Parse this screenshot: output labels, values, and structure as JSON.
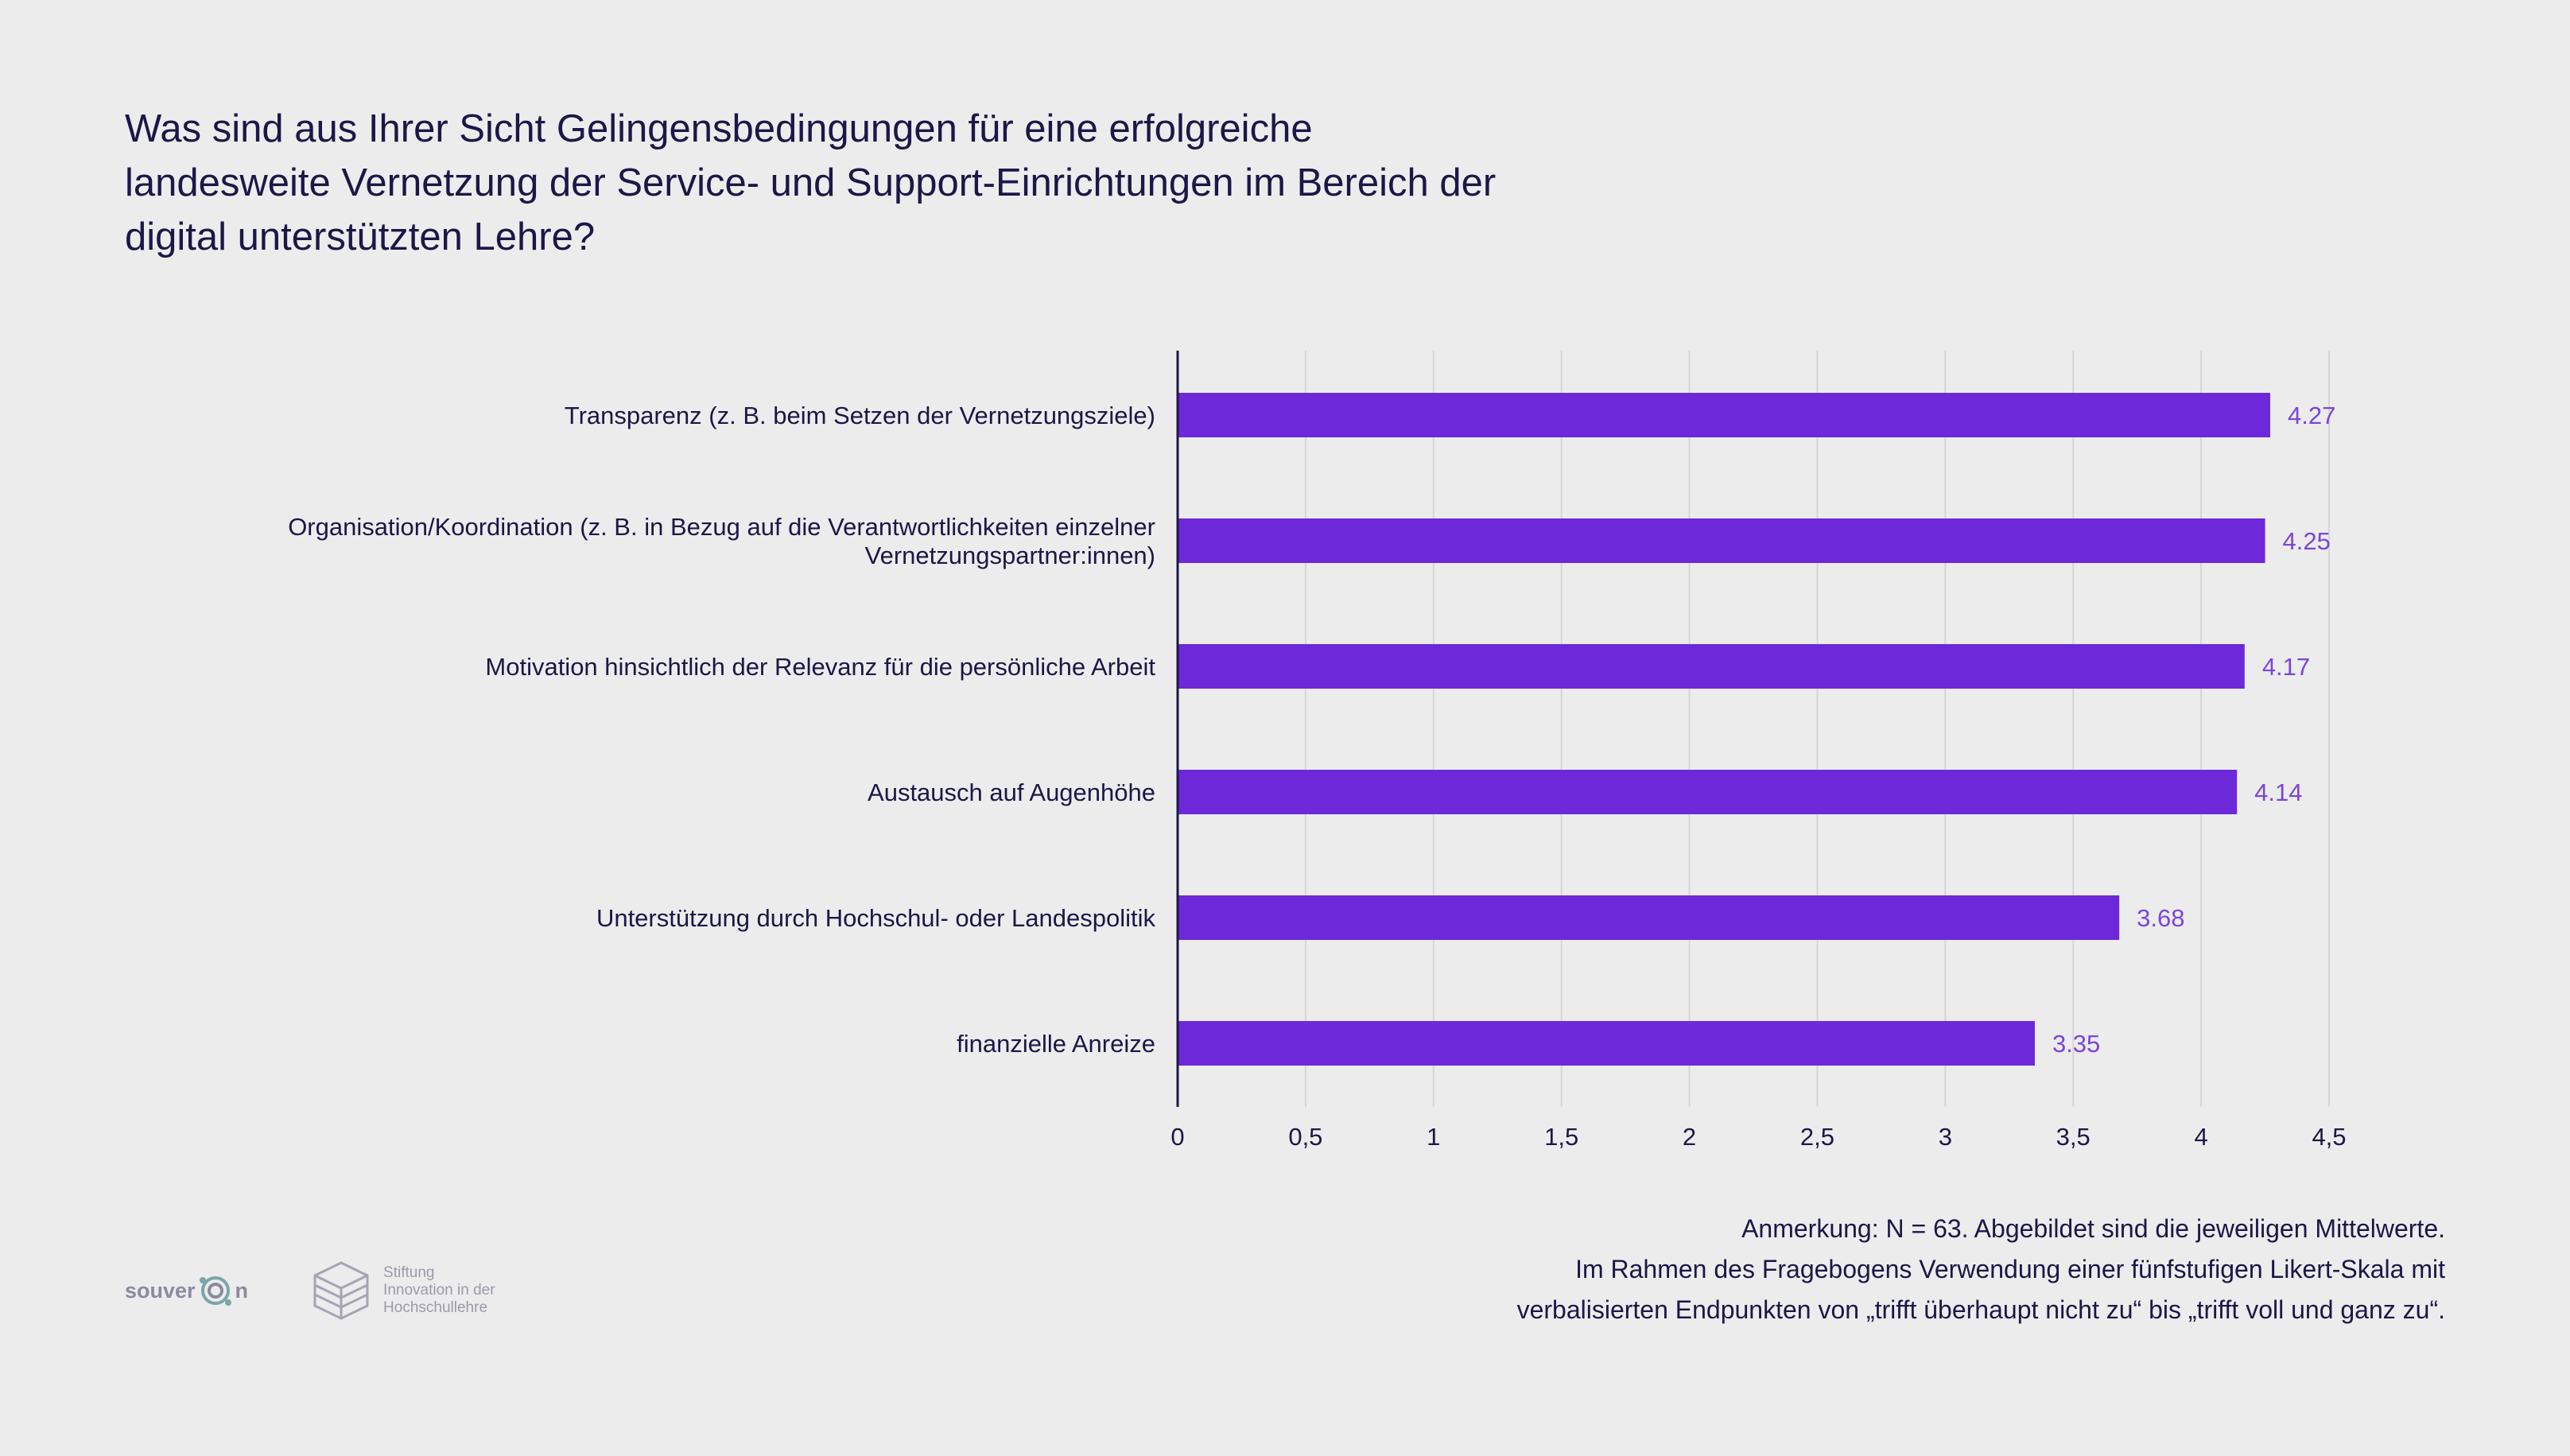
{
  "title_lines": [
    "Was sind aus Ihrer Sicht Gelingensbedingungen für eine erfolgreiche",
    "landesweite Vernetzung der Service- und Support-Einrichtungen im Bereich der",
    "digital unterstützten Lehre?"
  ],
  "note_lines": [
    "Anmerkung: N = 63. Abgebildet sind die jeweiligen Mittelwerte.",
    "Im Rahmen des Fragebogens Verwendung einer fünfstufigen Likert-Skala mit",
    "verbalisierten Endpunkten von „trifft überhaupt nicht zu“ bis „trifft voll und ganz zu“."
  ],
  "logos": {
    "souveran": {
      "text_a": "souver",
      "text_b": "n"
    },
    "stiftung": {
      "lines": [
        "Stiftung",
        "Innovation in der",
        "Hochschullehre"
      ]
    }
  },
  "colors": {
    "bar": "#6d28d9",
    "value_label": "#7a46d9",
    "text": "#1b1747",
    "grid": "#d6d6d6",
    "background": "#ececec"
  },
  "chart_data": {
    "type": "bar",
    "orientation": "horizontal",
    "categories": [
      [
        "Transparenz (z. B. beim Setzen der Vernetzungsziele)"
      ],
      [
        "Organisation/Koordination (z. B. in Bezug auf die Verantwortlichkeiten einzelner",
        "Vernetzungspartner:innen)"
      ],
      [
        "Motivation hinsichtlich der Relevanz für die persönliche Arbeit"
      ],
      [
        "Austausch auf Augenhöhe"
      ],
      [
        "Unterstützung durch Hochschul- oder Landespolitik"
      ],
      [
        "finanzielle Anreize"
      ]
    ],
    "values": [
      4.27,
      4.25,
      4.17,
      4.14,
      3.68,
      3.35
    ],
    "value_labels": [
      "4.27",
      "4.25",
      "4.17",
      "4.14",
      "3.68",
      "3.35"
    ],
    "xlim": [
      0,
      4.5
    ],
    "x_ticks": [
      0,
      0.5,
      1,
      1.5,
      2,
      2.5,
      3,
      3.5,
      4,
      4.5
    ],
    "x_tick_labels": [
      "0",
      "0,5",
      "1",
      "1,5",
      "2",
      "2,5",
      "3",
      "3,5",
      "4",
      "4,5"
    ],
    "grid": true,
    "legend": "none"
  }
}
